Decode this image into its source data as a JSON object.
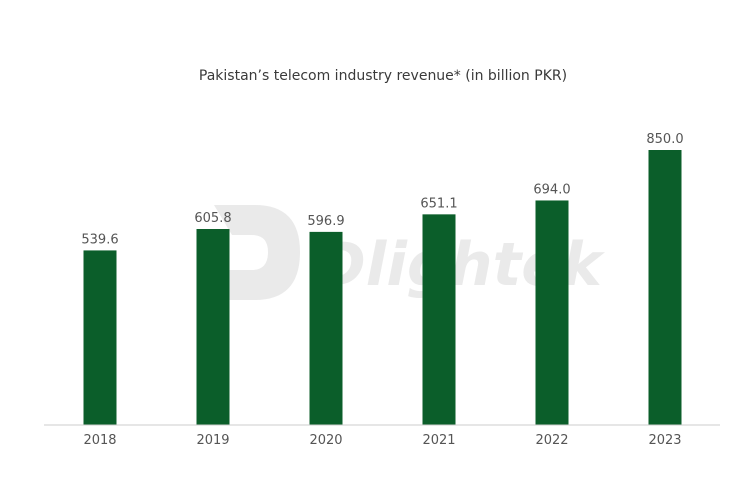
{
  "chart_data": {
    "type": "bar",
    "title": "Pakistan’s telecom industry revenue* (in billion PKR)",
    "categories": [
      "2018",
      "2019",
      "2020",
      "2021",
      "2022",
      "2023"
    ],
    "values": [
      539.6,
      605.8,
      596.9,
      651.1,
      694.0,
      850.0
    ],
    "value_labels": [
      "539.6",
      "605.8",
      "596.9",
      "651.1",
      "694.0",
      "850.0"
    ],
    "xlabel": "",
    "ylabel": "",
    "ylim": [
      0,
      1000
    ],
    "grid": false,
    "legend": "none",
    "bar_color": "#0b5e2a",
    "baseline_color": "#cccccc"
  },
  "watermark": {
    "text": "Dlightek",
    "color": "#e3e3e3"
  }
}
